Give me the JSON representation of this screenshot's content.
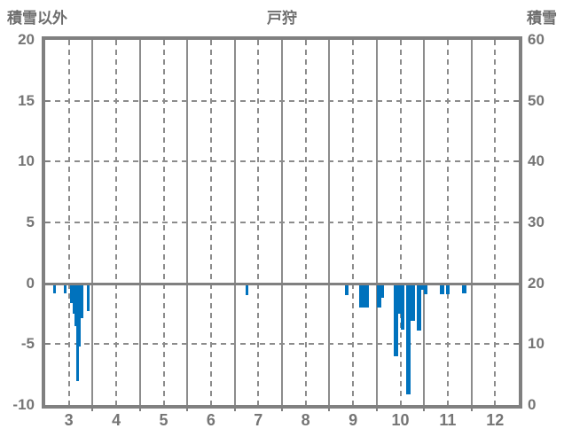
{
  "colors": {
    "bar": "#0072BD",
    "axis": "#808080",
    "gridline": "#8C8C8C",
    "text": "#757575",
    "background": "#FFFFFF"
  },
  "chart_data": {
    "type": "bar",
    "title": "戸狩",
    "left_axis": {
      "title": "積雪以外",
      "ticks": [
        "20",
        "15",
        "10",
        "5",
        "0",
        "-5",
        "-10"
      ],
      "tick_values": [
        20,
        15,
        10,
        5,
        0,
        -5,
        -10
      ],
      "min": -10,
      "max": 20
    },
    "right_axis": {
      "title": "積雪",
      "ticks": [
        "60",
        "50",
        "40",
        "30",
        "20",
        "10",
        "0"
      ],
      "tick_values": [
        60,
        50,
        40,
        30,
        20,
        10,
        0
      ],
      "min": 0,
      "max": 60
    },
    "x_axis": {
      "tick_labels": [
        "3",
        "4",
        "5",
        "6",
        "7",
        "8",
        "9",
        "10",
        "11",
        "12"
      ],
      "months": [
        3,
        4,
        5,
        6,
        7,
        8,
        9,
        10,
        11,
        12
      ],
      "days_in_month": {
        "3": 31,
        "4": 30,
        "5": 31,
        "6": 30,
        "7": 31,
        "8": 31,
        "9": 30,
        "10": 31,
        "11": 30,
        "12": 31
      }
    },
    "grid": {
      "vertical_solid_at": "month-boundaries",
      "vertical_dashed_at": "month-centers",
      "horizontal_dashed_values": [
        15,
        10,
        5,
        -5
      ],
      "zero_line_value": 0
    },
    "series": [
      {
        "name": "積雪以外",
        "axis": "left",
        "color": "#0072BD",
        "bars": [
          {
            "month": 3,
            "day_start": 6,
            "day_end": 7,
            "value": -0.8
          },
          {
            "month": 3,
            "day_start": 13,
            "day_end": 14,
            "value": -0.8
          },
          {
            "month": 3,
            "day_start": 17,
            "day_end": 18,
            "value": -1.6
          },
          {
            "month": 3,
            "day_start": 19,
            "day_end": 19,
            "value": -2.5
          },
          {
            "month": 3,
            "day_start": 20,
            "day_end": 20,
            "value": -3.5
          },
          {
            "month": 3,
            "day_start": 21,
            "day_end": 22,
            "value": -8.0
          },
          {
            "month": 3,
            "day_start": 23,
            "day_end": 23,
            "value": -5.2
          },
          {
            "month": 3,
            "day_start": 24,
            "day_end": 25,
            "value": -2.9
          },
          {
            "month": 3,
            "day_start": 28,
            "day_end": 29,
            "value": -2.3
          },
          {
            "month": 7,
            "day_start": 8,
            "day_end": 9,
            "value": -1.0
          },
          {
            "month": 9,
            "day_start": 11,
            "day_end": 12,
            "value": -1.0
          },
          {
            "month": 9,
            "day_start": 20,
            "day_end": 25,
            "value": -2.0
          },
          {
            "month": 10,
            "day_start": 1,
            "day_end": 3,
            "value": -2.0
          },
          {
            "month": 10,
            "day_start": 4,
            "day_end": 5,
            "value": -1.2
          },
          {
            "month": 10,
            "day_start": 12,
            "day_end": 14,
            "value": -6.0
          },
          {
            "month": 10,
            "day_start": 15,
            "day_end": 16,
            "value": -2.5
          },
          {
            "month": 10,
            "day_start": 17,
            "day_end": 18,
            "value": -3.8
          },
          {
            "month": 10,
            "day_start": 20,
            "day_end": 22,
            "value": -9.1
          },
          {
            "month": 10,
            "day_start": 23,
            "day_end": 25,
            "value": -3.1
          },
          {
            "month": 10,
            "day_start": 27,
            "day_end": 29,
            "value": -3.9
          },
          {
            "month": 10,
            "day_start": 30,
            "day_end": 31,
            "value": -0.5
          },
          {
            "month": 11,
            "day_start": 1,
            "day_end": 2,
            "value": -0.9
          },
          {
            "month": 11,
            "day_start": 11,
            "day_end": 13,
            "value": -0.9
          },
          {
            "month": 11,
            "day_start": 15,
            "day_end": 16,
            "value": -0.9
          },
          {
            "month": 11,
            "day_start": 25,
            "day_end": 27,
            "value": -0.85
          }
        ]
      }
    ]
  }
}
